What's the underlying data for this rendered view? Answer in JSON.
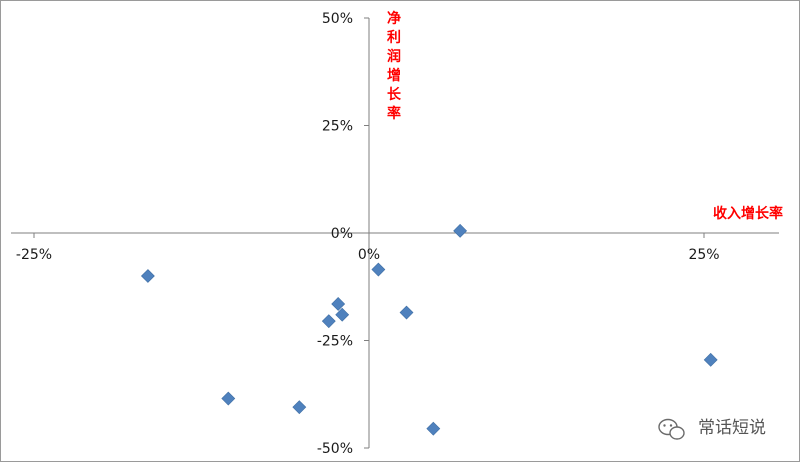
{
  "chart_data": {
    "type": "scatter",
    "xlabel": "收入增长率",
    "ylabel": "净利润增长率",
    "xlim": [
      -26,
      30
    ],
    "ylim": [
      -50,
      50
    ],
    "x_ticks": [
      "-25%",
      "0%",
      "25%"
    ],
    "y_ticks": [
      "50%",
      "25%",
      "0%",
      "-25%",
      "-50%"
    ],
    "grid": false,
    "marker": "diamond",
    "series": [
      {
        "points": [
          {
            "x": 6.8,
            "y": 0.5
          },
          {
            "x": -16.5,
            "y": -10
          },
          {
            "x": 0.7,
            "y": -8.5
          },
          {
            "x": -2.3,
            "y": -16.5
          },
          {
            "x": -2.0,
            "y": -19
          },
          {
            "x": -3.0,
            "y": -20.5
          },
          {
            "x": 2.8,
            "y": -18.5
          },
          {
            "x": 25.5,
            "y": -29.5
          },
          {
            "x": -10.5,
            "y": -38.5
          },
          {
            "x": -5.2,
            "y": -40.5
          },
          {
            "x": 4.8,
            "y": -45.5
          }
        ]
      }
    ],
    "colors": {
      "marker": "#4f81bd",
      "axis_title": "#ff0000",
      "axis": "#7f7f7f"
    }
  },
  "watermark": {
    "text": "常话短说",
    "icon": "wechat-icon"
  }
}
